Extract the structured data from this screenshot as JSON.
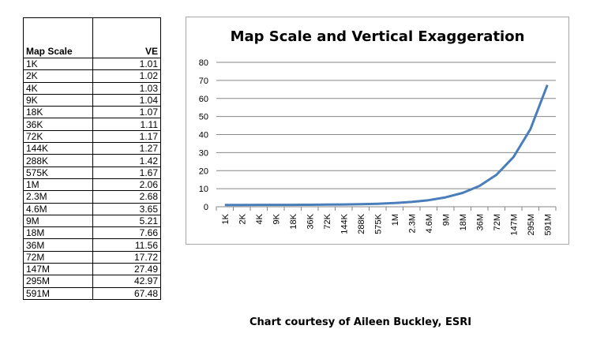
{
  "table": {
    "headers": [
      "Map Scale",
      "VE"
    ],
    "rows": [
      [
        "1K",
        "1.01"
      ],
      [
        "2K",
        "1.02"
      ],
      [
        "4K",
        "1.03"
      ],
      [
        "9K",
        "1.04"
      ],
      [
        "18K",
        "1.07"
      ],
      [
        "36K",
        "1.11"
      ],
      [
        "72K",
        "1.17"
      ],
      [
        "144K",
        "1.27"
      ],
      [
        "288K",
        "1.42"
      ],
      [
        "575K",
        "1.67"
      ],
      [
        "1M",
        "2.06"
      ],
      [
        "2.3M",
        "2.68"
      ],
      [
        "4.6M",
        "3.65"
      ],
      [
        "9M",
        "5.21"
      ],
      [
        "18M",
        "7.66"
      ],
      [
        "36M",
        "11.56"
      ],
      [
        "72M",
        "17.72"
      ],
      [
        "147M",
        "27.49"
      ],
      [
        "295M",
        "42.97"
      ],
      [
        "591M",
        "67.48"
      ]
    ]
  },
  "chart_data": {
    "type": "line",
    "title": "Map Scale and Vertical Exaggeration",
    "xlabel": "",
    "ylabel": "",
    "categories": [
      "1K",
      "2K",
      "4K",
      "9K",
      "18K",
      "36K",
      "72K",
      "144K",
      "288K",
      "575K",
      "1M",
      "2.3M",
      "4.6M",
      "9M",
      "18M",
      "36M",
      "72M",
      "147M",
      "295M",
      "591M"
    ],
    "series": [
      {
        "values": [
          1.01,
          1.02,
          1.03,
          1.04,
          1.07,
          1.11,
          1.17,
          1.27,
          1.42,
          1.67,
          2.06,
          2.68,
          3.65,
          5.21,
          7.66,
          11.56,
          17.72,
          27.49,
          42.97,
          67.48
        ]
      }
    ],
    "ylim": [
      0,
      80
    ],
    "yticks": [
      0,
      10,
      20,
      30,
      40,
      50,
      60,
      70,
      80
    ],
    "grid": true,
    "legend": "none",
    "line_color": "#4a7ebb"
  },
  "credit": "Chart courtesy of Aileen Buckley, ESRI"
}
